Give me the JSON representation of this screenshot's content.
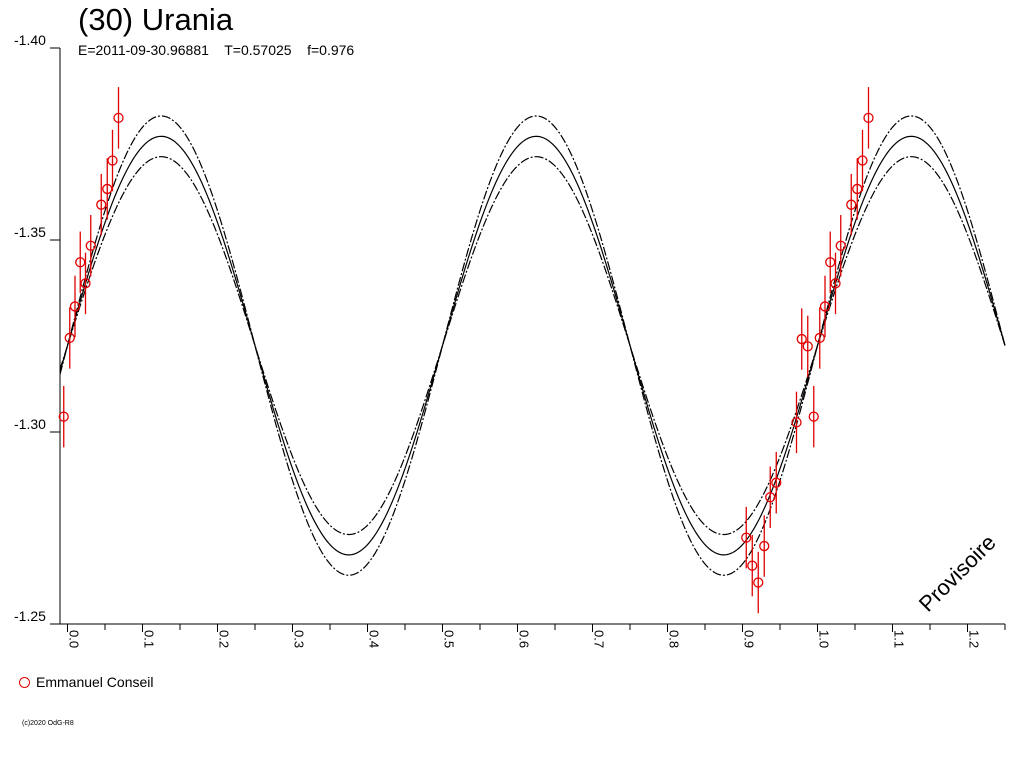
{
  "header": {
    "title": "(30) Urania",
    "subtitle": "E=2011-09-30.96881    T=0.57025    f=0.976"
  },
  "watermark": "Provisoire",
  "legend": {
    "label": "Emmanuel Conseil",
    "color": "#e00000"
  },
  "copyright": "(c)2020 OdG-R8",
  "chart_data": {
    "type": "scatter",
    "xlim": [
      -0.01,
      1.25
    ],
    "ylim": [
      -1.4,
      -1.25
    ],
    "y_axis_inverted": true,
    "grid": false,
    "y_ticks": [
      {
        "value": -1.4,
        "label": "-1.40"
      },
      {
        "value": -1.35,
        "label": "-1.35"
      },
      {
        "value": -1.3,
        "label": "-1.30"
      },
      {
        "value": -1.25,
        "label": "-1.25"
      }
    ],
    "x_ticks": [
      {
        "value": 0.0,
        "label": "0.0"
      },
      {
        "value": 0.1,
        "label": "0.1"
      },
      {
        "value": 0.2,
        "label": "0.2"
      },
      {
        "value": 0.3,
        "label": "0.3"
      },
      {
        "value": 0.4,
        "label": "0.4"
      },
      {
        "value": 0.5,
        "label": "0.5"
      },
      {
        "value": 0.6,
        "label": "0.6"
      },
      {
        "value": 0.7,
        "label": "0.7"
      },
      {
        "value": 0.8,
        "label": "0.8"
      },
      {
        "value": 0.9,
        "label": "0.9"
      },
      {
        "value": 1.0,
        "label": "1.0"
      },
      {
        "value": 1.1,
        "label": "1.1"
      },
      {
        "value": 1.2,
        "label": "1.2"
      }
    ],
    "model": {
      "mean": -1.3225,
      "amplitude": 0.0545,
      "envelope": 0.0053,
      "phase_of_max": 0.125,
      "harmonics": 2
    },
    "series": [
      {
        "name": "Emmanuel Conseil",
        "color": "#e00000",
        "points": [
          {
            "x": -0.005,
            "y": -1.304,
            "err": 0.008
          },
          {
            "x": 0.003,
            "y": -1.3245,
            "err": 0.008
          },
          {
            "x": 0.01,
            "y": -1.3327,
            "err": 0.008
          },
          {
            "x": 0.017,
            "y": -1.3442,
            "err": 0.008
          },
          {
            "x": 0.024,
            "y": -1.3387,
            "err": 0.008
          },
          {
            "x": 0.031,
            "y": -1.3485,
            "err": 0.008
          },
          {
            "x": 0.045,
            "y": -1.3592,
            "err": 0.008
          },
          {
            "x": 0.053,
            "y": -1.3633,
            "err": 0.008
          },
          {
            "x": 0.06,
            "y": -1.3707,
            "err": 0.008
          },
          {
            "x": 0.068,
            "y": -1.3818,
            "err": 0.008
          },
          {
            "x": 0.905,
            "y": -1.2725,
            "err": 0.008
          },
          {
            "x": 0.913,
            "y": -1.2652,
            "err": 0.008
          },
          {
            "x": 0.921,
            "y": -1.2608,
            "err": 0.008
          },
          {
            "x": 0.929,
            "y": -1.2703,
            "err": 0.008
          },
          {
            "x": 0.937,
            "y": -1.283,
            "err": 0.008
          },
          {
            "x": 0.945,
            "y": -1.2868,
            "err": 0.008
          },
          {
            "x": 0.972,
            "y": -1.3025,
            "err": 0.008
          },
          {
            "x": 0.979,
            "y": -1.3242,
            "err": 0.008
          },
          {
            "x": 0.987,
            "y": -1.3223,
            "err": 0.008
          },
          {
            "x": 0.995,
            "y": -1.304,
            "err": 0.008
          },
          {
            "x": 1.003,
            "y": -1.3245,
            "err": 0.008
          },
          {
            "x": 1.01,
            "y": -1.3327,
            "err": 0.008
          },
          {
            "x": 1.017,
            "y": -1.3442,
            "err": 0.008
          },
          {
            "x": 1.024,
            "y": -1.3387,
            "err": 0.008
          },
          {
            "x": 1.031,
            "y": -1.3485,
            "err": 0.008
          },
          {
            "x": 1.045,
            "y": -1.3592,
            "err": 0.008
          },
          {
            "x": 1.053,
            "y": -1.3633,
            "err": 0.008
          },
          {
            "x": 1.06,
            "y": -1.3707,
            "err": 0.008
          },
          {
            "x": 1.068,
            "y": -1.3818,
            "err": 0.008
          }
        ]
      }
    ]
  }
}
